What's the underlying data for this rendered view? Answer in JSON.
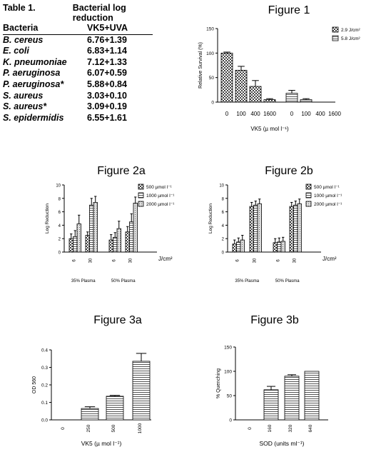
{
  "table1": {
    "title": "Table 1.",
    "heading": "Bacterial log reduction",
    "col_bacteria": "Bacteria",
    "col_value": "VK5+UVA",
    "rows": [
      {
        "bacteria": "B. cereus",
        "value": "6.76+1.39"
      },
      {
        "bacteria": "E. coli",
        "value": "6.83+1.14"
      },
      {
        "bacteria": "K. pneumoniae",
        "value": "7.12+1.33"
      },
      {
        "bacteria": "P. aeruginosa",
        "value": "6.07+0.59"
      },
      {
        "bacteria": "P. aeruginosa*",
        "value": "5.88+0.84"
      },
      {
        "bacteria": "S. aureus",
        "value": "3.03+0.10"
      },
      {
        "bacteria": "S. aureus*",
        "value": "3.09+0.19"
      },
      {
        "bacteria": "S. epidermidis",
        "value": "6.55+1.61"
      }
    ]
  },
  "chart_data": [
    {
      "id": "fig1",
      "type": "bar",
      "title": "Figure 1",
      "ylabel": "Relative Survival (%)",
      "xlabel": "VK5 (µ mol l⁻¹)",
      "ylim": [
        0,
        150
      ],
      "yticks": [
        "0",
        "50",
        "100",
        "150"
      ],
      "legend": [
        "2.9 J/cm²",
        "5.8 J/cm²"
      ],
      "legend_position": "right",
      "groups": [
        {
          "series": "2.9 J/cm²",
          "categories": [
            "0",
            "100",
            "400",
            "1600"
          ],
          "values": [
            100,
            65,
            32,
            5
          ],
          "errors": [
            2,
            8,
            12,
            2
          ]
        },
        {
          "series": "5.8 J/cm²",
          "categories": [
            "0",
            "100",
            "400",
            "1600"
          ],
          "values": [
            18,
            5,
            0,
            0
          ],
          "errors": [
            6,
            2,
            0,
            0
          ]
        }
      ]
    },
    {
      "id": "fig2a",
      "type": "bar",
      "title": "Figure 2a",
      "ylabel": "Log Reduction",
      "ylim": [
        0,
        10
      ],
      "yticks": [
        "0",
        "2",
        "4",
        "6",
        "8",
        "10"
      ],
      "legend": [
        "500 µmol l⁻¹",
        "1000 µmol l⁻¹",
        "2000 µmol l⁻¹"
      ],
      "legend_position": "top-right",
      "unit_label": "J/cm²",
      "groups": [
        {
          "label": "35% Plasma",
          "dose_labels": [
            "6",
            "30"
          ],
          "values": [
            [
              2.0,
              2.3,
              4.2
            ],
            [
              2.5,
              7.0,
              7.4
            ]
          ],
          "errors": [
            [
              0.7,
              0.9,
              1.3
            ],
            [
              0.5,
              1.0,
              0.9
            ]
          ]
        },
        {
          "label": "50% Plasma",
          "dose_labels": [
            "6",
            "30"
          ],
          "values": [
            [
              1.8,
              2.2,
              3.5
            ],
            [
              3.0,
              4.5,
              7.3
            ]
          ],
          "errors": [
            [
              0.8,
              0.7,
              1.1
            ],
            [
              0.8,
              1.2,
              0.9
            ]
          ]
        }
      ]
    },
    {
      "id": "fig2b",
      "type": "bar",
      "title": "Figure 2b",
      "ylabel": "Log Reduction",
      "ylim": [
        0,
        10
      ],
      "yticks": [
        "0",
        "2",
        "4",
        "6",
        "8",
        "10"
      ],
      "legend": [
        "500 µmol l⁻¹",
        "1000 µmol l⁻¹",
        "2000 µmol l⁻¹"
      ],
      "legend_position": "top-right",
      "unit_label": "J/cm²",
      "groups": [
        {
          "label": "35% Plasma",
          "dose_labels": [
            "6",
            "30"
          ],
          "values": [
            [
              1.2,
              1.5,
              1.8
            ],
            [
              6.8,
              7.0,
              7.2
            ]
          ],
          "errors": [
            [
              0.6,
              0.6,
              0.7
            ],
            [
              0.6,
              0.6,
              0.7
            ]
          ]
        },
        {
          "label": "50% Plasma",
          "dose_labels": [
            "6",
            "30"
          ],
          "values": [
            [
              1.4,
              1.5,
              1.6
            ],
            [
              6.8,
              7.0,
              7.2
            ]
          ],
          "errors": [
            [
              0.6,
              0.6,
              0.6
            ],
            [
              0.6,
              0.6,
              0.7
            ]
          ]
        }
      ]
    },
    {
      "id": "fig3a",
      "type": "bar",
      "title": "Figure 3a",
      "ylabel": "OD 560",
      "xlabel": "VK5 (µ mol l⁻¹)",
      "ylim": [
        0,
        0.4
      ],
      "yticks": [
        "0.0",
        "0.1",
        "0.2",
        "0.3",
        "0.4"
      ],
      "categories": [
        "0",
        "250",
        "500",
        "1000"
      ],
      "values": [
        0,
        0.065,
        0.135,
        0.335
      ],
      "errors": [
        0,
        0.01,
        0.005,
        0.045
      ]
    },
    {
      "id": "fig3b",
      "type": "bar",
      "title": "Figure 3b",
      "ylabel": "% Quenching",
      "xlabel": "SOD (units ml⁻¹)",
      "ylim": [
        0,
        150
      ],
      "yticks": [
        "0",
        "50",
        "100",
        "150"
      ],
      "categories": [
        "0",
        "160",
        "320",
        "640"
      ],
      "values": [
        0,
        62,
        90,
        100
      ],
      "errors": [
        0,
        7,
        3,
        0
      ]
    }
  ],
  "colors": {
    "bar_fill": "#c8c8c8",
    "bar_stroke": "#000000",
    "axis": "#000000"
  }
}
